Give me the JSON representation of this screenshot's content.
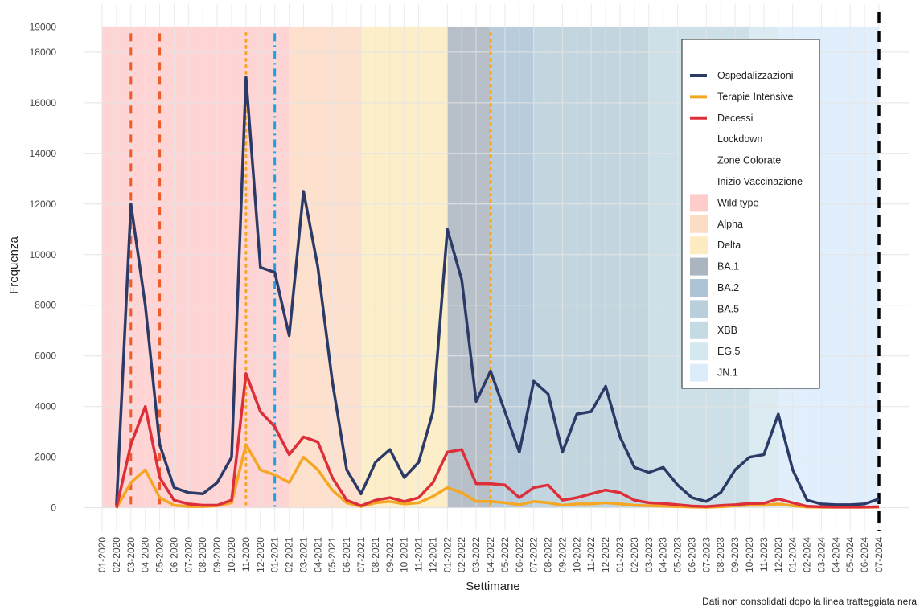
{
  "chart_data": {
    "type": "line",
    "y_label": "Frequenza",
    "x_label": "Settimane",
    "note": "Dati non consolidati dopo la linea tratteggiata nera",
    "x": [
      "01-2020",
      "02-2020",
      "03-2020",
      "04-2020",
      "05-2020",
      "06-2020",
      "07-2020",
      "08-2020",
      "09-2020",
      "10-2020",
      "11-2020",
      "12-2020",
      "01-2021",
      "02-2021",
      "03-2021",
      "04-2021",
      "05-2021",
      "06-2021",
      "07-2021",
      "08-2021",
      "09-2021",
      "10-2021",
      "11-2021",
      "12-2021",
      "01-2022",
      "02-2022",
      "03-2022",
      "04-2022",
      "05-2022",
      "06-2022",
      "07-2022",
      "08-2022",
      "09-2022",
      "10-2022",
      "11-2022",
      "12-2022",
      "01-2023",
      "02-2023",
      "03-2023",
      "04-2023",
      "05-2023",
      "06-2023",
      "07-2023",
      "08-2023",
      "09-2023",
      "10-2023",
      "11-2023",
      "12-2023",
      "01-2024",
      "02-2024",
      "03-2024",
      "04-2024",
      "05-2024",
      "06-2024",
      "07-2024"
    ],
    "series": [
      {
        "name": "Ospedalizzazioni",
        "color": "#2b3a67",
        "values": [
          null,
          100,
          12000,
          8000,
          2500,
          800,
          600,
          550,
          1000,
          2000,
          17000,
          9500,
          9300,
          6800,
          12500,
          9500,
          5000,
          1500,
          550,
          1800,
          2300,
          1200,
          1800,
          3800,
          11000,
          9000,
          4200,
          5400,
          3800,
          2200,
          5000,
          4500,
          2200,
          3700,
          3800,
          4800,
          2800,
          1600,
          1400,
          1600,
          900,
          400,
          250,
          600,
          1500,
          2000,
          2100,
          3700,
          1500,
          300,
          150,
          120,
          120,
          150,
          350
        ]
      },
      {
        "name": "Terapie Intensive",
        "color": "#f5a623",
        "values": [
          null,
          0,
          1000,
          1500,
          400,
          100,
          50,
          50,
          80,
          200,
          2500,
          1500,
          1300,
          1000,
          2000,
          1500,
          700,
          200,
          50,
          200,
          250,
          150,
          200,
          450,
          800,
          600,
          250,
          250,
          200,
          120,
          250,
          200,
          100,
          150,
          150,
          200,
          150,
          100,
          80,
          70,
          50,
          30,
          20,
          40,
          80,
          100,
          100,
          150,
          80,
          30,
          20,
          20,
          20,
          20,
          30
        ]
      },
      {
        "name": "Decessi",
        "color": "#dc2f3a",
        "values": [
          null,
          0,
          2500,
          4000,
          1200,
          300,
          150,
          100,
          100,
          300,
          5300,
          3800,
          3200,
          2100,
          2800,
          2600,
          1200,
          300,
          80,
          300,
          400,
          250,
          400,
          1000,
          2200,
          2300,
          950,
          950,
          900,
          400,
          800,
          900,
          300,
          400,
          550,
          700,
          600,
          300,
          200,
          170,
          120,
          70,
          50,
          90,
          120,
          170,
          180,
          350,
          200,
          60,
          40,
          30,
          30,
          30,
          40
        ]
      }
    ],
    "events": [
      {
        "name": "Lockdown",
        "color": "#f05a28",
        "style": "dashed",
        "dates": [
          "03-2020",
          "05-2020"
        ]
      },
      {
        "name": "Zone Colorate",
        "color": "#f5a623",
        "style": "dotted",
        "dates": [
          "11-2020",
          "04-2022"
        ]
      },
      {
        "name": "Inizio Vaccinazione",
        "color": "#1ba1e2",
        "style": "dotdash",
        "dates": [
          "01-2021"
        ]
      }
    ],
    "cutoff": {
      "date": "07-2024",
      "color": "#000000"
    },
    "variants": [
      {
        "name": "Wild type",
        "color": "#ffcccc",
        "start": "01-2020",
        "end": "02-2021"
      },
      {
        "name": "Alpha",
        "color": "#fddcc6",
        "start": "02-2021",
        "end": "07-2021"
      },
      {
        "name": "Delta",
        "color": "#fdebc1",
        "start": "07-2021",
        "end": "01-2022"
      },
      {
        "name": "BA.1",
        "color": "#aab5c0",
        "start": "01-2022",
        "end": "04-2022"
      },
      {
        "name": "BA.2",
        "color": "#adc3d6",
        "start": "04-2022",
        "end": "07-2022"
      },
      {
        "name": "BA.5",
        "color": "#b9cfdb",
        "start": "07-2022",
        "end": "03-2023"
      },
      {
        "name": "XBB",
        "color": "#c5dbe3",
        "start": "03-2023",
        "end": "10-2023"
      },
      {
        "name": "EG.5",
        "color": "#d4e8f0",
        "start": "10-2023",
        "end": "12-2023"
      },
      {
        "name": "JN.1",
        "color": "#dcecfb",
        "start": "12-2023",
        "end": "07-2024"
      }
    ],
    "ylim": [
      -900,
      19900
    ],
    "yticks": [
      0,
      2000,
      4000,
      6000,
      8000,
      10000,
      12000,
      14000,
      16000,
      18000,
      19000
    ],
    "grid": true
  }
}
